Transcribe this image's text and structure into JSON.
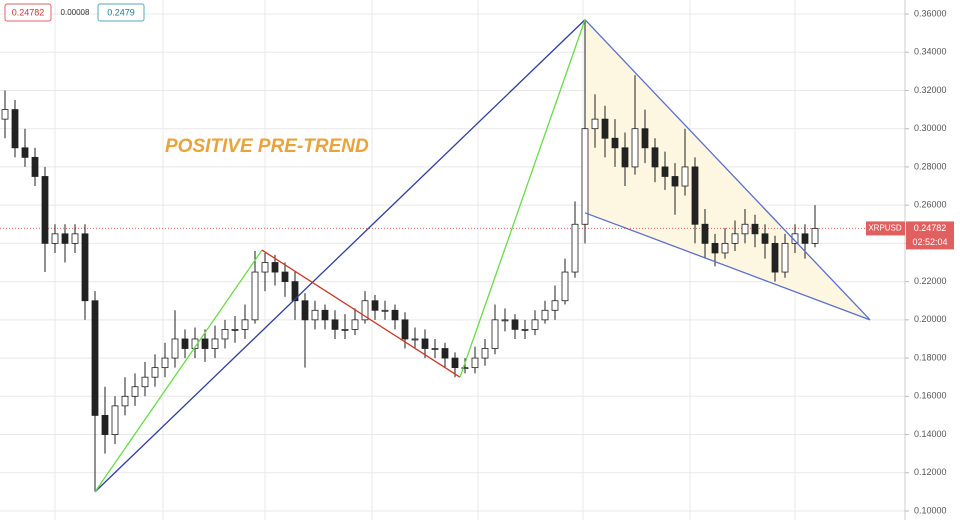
{
  "chart_data": {
    "type": "candlestick",
    "symbol": "XRPUSD",
    "last_price": 0.24782,
    "countdown": "02:52:04",
    "header": {
      "bid": 0.24782,
      "spread": 8e-05,
      "ask": 0.2479
    },
    "annotation": "POSITIVE PRE-TREND",
    "ylim": [
      0.1,
      0.36
    ],
    "yticks": [
      {
        "value": 0.1,
        "label": "0.10000"
      },
      {
        "value": 0.12,
        "label": "0.12000"
      },
      {
        "value": 0.14,
        "label": "0.14000"
      },
      {
        "value": 0.16,
        "label": "0.16000"
      },
      {
        "value": 0.18,
        "label": "0.18000"
      },
      {
        "value": 0.2,
        "label": "0.20000"
      },
      {
        "value": 0.22,
        "label": "0.22000"
      },
      {
        "value": 0.24,
        "label": "0.24000"
      },
      {
        "value": 0.26,
        "label": "0.26000"
      },
      {
        "value": 0.28,
        "label": "0.28000"
      },
      {
        "value": 0.3,
        "label": "0.30000"
      },
      {
        "value": 0.32,
        "label": "0.32000"
      },
      {
        "value": 0.34,
        "label": "0.34000"
      },
      {
        "value": 0.36,
        "label": "0.36000"
      }
    ],
    "grid": true,
    "up_color": "#ffffff",
    "down_color": "#222222",
    "ohlc": [
      [
        0.305,
        0.32,
        0.295,
        0.31
      ],
      [
        0.31,
        0.315,
        0.285,
        0.29
      ],
      [
        0.29,
        0.3,
        0.28,
        0.285
      ],
      [
        0.285,
        0.29,
        0.27,
        0.275
      ],
      [
        0.275,
        0.28,
        0.225,
        0.24
      ],
      [
        0.24,
        0.25,
        0.235,
        0.245
      ],
      [
        0.245,
        0.25,
        0.23,
        0.24
      ],
      [
        0.24,
        0.25,
        0.235,
        0.245
      ],
      [
        0.245,
        0.25,
        0.2,
        0.21
      ],
      [
        0.21,
        0.215,
        0.11,
        0.15
      ],
      [
        0.15,
        0.165,
        0.13,
        0.14
      ],
      [
        0.14,
        0.16,
        0.135,
        0.155
      ],
      [
        0.155,
        0.17,
        0.15,
        0.16
      ],
      [
        0.16,
        0.172,
        0.155,
        0.165
      ],
      [
        0.165,
        0.178,
        0.16,
        0.17
      ],
      [
        0.17,
        0.182,
        0.165,
        0.175
      ],
      [
        0.175,
        0.188,
        0.17,
        0.18
      ],
      [
        0.18,
        0.205,
        0.175,
        0.19
      ],
      [
        0.19,
        0.195,
        0.18,
        0.185
      ],
      [
        0.185,
        0.196,
        0.18,
        0.19
      ],
      [
        0.19,
        0.195,
        0.178,
        0.185
      ],
      [
        0.185,
        0.197,
        0.18,
        0.19
      ],
      [
        0.19,
        0.2,
        0.185,
        0.195
      ],
      [
        0.195,
        0.202,
        0.188,
        0.195
      ],
      [
        0.195,
        0.208,
        0.19,
        0.2
      ],
      [
        0.2,
        0.236,
        0.198,
        0.225
      ],
      [
        0.225,
        0.235,
        0.215,
        0.23
      ],
      [
        0.23,
        0.234,
        0.218,
        0.225
      ],
      [
        0.225,
        0.23,
        0.212,
        0.22
      ],
      [
        0.22,
        0.225,
        0.2,
        0.21
      ],
      [
        0.21,
        0.214,
        0.175,
        0.2
      ],
      [
        0.2,
        0.21,
        0.195,
        0.205
      ],
      [
        0.205,
        0.208,
        0.195,
        0.2
      ],
      [
        0.2,
        0.205,
        0.19,
        0.195
      ],
      [
        0.195,
        0.203,
        0.19,
        0.195
      ],
      [
        0.195,
        0.206,
        0.192,
        0.2
      ],
      [
        0.2,
        0.215,
        0.198,
        0.21
      ],
      [
        0.21,
        0.213,
        0.2,
        0.205
      ],
      [
        0.205,
        0.21,
        0.2,
        0.205
      ],
      [
        0.205,
        0.208,
        0.195,
        0.2
      ],
      [
        0.2,
        0.204,
        0.185,
        0.19
      ],
      [
        0.19,
        0.196,
        0.185,
        0.19
      ],
      [
        0.19,
        0.195,
        0.18,
        0.185
      ],
      [
        0.185,
        0.19,
        0.18,
        0.185
      ],
      [
        0.185,
        0.188,
        0.175,
        0.18
      ],
      [
        0.18,
        0.183,
        0.17,
        0.175
      ],
      [
        0.175,
        0.18,
        0.172,
        0.175
      ],
      [
        0.175,
        0.186,
        0.172,
        0.18
      ],
      [
        0.18,
        0.19,
        0.176,
        0.185
      ],
      [
        0.185,
        0.208,
        0.182,
        0.2
      ],
      [
        0.2,
        0.206,
        0.194,
        0.2
      ],
      [
        0.2,
        0.203,
        0.19,
        0.195
      ],
      [
        0.195,
        0.2,
        0.19,
        0.195
      ],
      [
        0.195,
        0.205,
        0.192,
        0.2
      ],
      [
        0.2,
        0.21,
        0.198,
        0.205
      ],
      [
        0.205,
        0.218,
        0.2,
        0.21
      ],
      [
        0.21,
        0.232,
        0.208,
        0.225
      ],
      [
        0.225,
        0.262,
        0.222,
        0.25
      ],
      [
        0.25,
        0.357,
        0.24,
        0.3
      ],
      [
        0.3,
        0.318,
        0.29,
        0.305
      ],
      [
        0.305,
        0.312,
        0.285,
        0.295
      ],
      [
        0.295,
        0.305,
        0.28,
        0.29
      ],
      [
        0.29,
        0.298,
        0.27,
        0.28
      ],
      [
        0.28,
        0.328,
        0.276,
        0.3
      ],
      [
        0.3,
        0.31,
        0.282,
        0.29
      ],
      [
        0.29,
        0.295,
        0.272,
        0.28
      ],
      [
        0.28,
        0.288,
        0.268,
        0.275
      ],
      [
        0.275,
        0.282,
        0.255,
        0.27
      ],
      [
        0.27,
        0.3,
        0.265,
        0.28
      ],
      [
        0.28,
        0.285,
        0.24,
        0.25
      ],
      [
        0.25,
        0.258,
        0.232,
        0.24
      ],
      [
        0.24,
        0.245,
        0.228,
        0.235
      ],
      [
        0.235,
        0.248,
        0.232,
        0.24
      ],
      [
        0.24,
        0.252,
        0.236,
        0.245
      ],
      [
        0.245,
        0.258,
        0.24,
        0.25
      ],
      [
        0.25,
        0.255,
        0.238,
        0.245
      ],
      [
        0.245,
        0.25,
        0.232,
        0.24
      ],
      [
        0.24,
        0.244,
        0.22,
        0.225
      ],
      [
        0.225,
        0.245,
        0.222,
        0.24
      ],
      [
        0.24,
        0.25,
        0.235,
        0.245
      ],
      [
        0.245,
        0.25,
        0.232,
        0.24
      ],
      [
        0.24,
        0.26,
        0.238,
        0.24782
      ]
    ],
    "wedge": {
      "color": "#fdf6e0",
      "points": [
        [
          58,
          0.357
        ],
        [
          86.5,
          0.2
        ],
        [
          58,
          0.256
        ]
      ]
    },
    "drawings": [
      {
        "color": "#2f3fa0",
        "points": [
          [
            9,
            0.11
          ],
          [
            58,
            0.357
          ]
        ]
      },
      {
        "color": "#5a6fd0",
        "points": [
          [
            58,
            0.357
          ],
          [
            86.5,
            0.2
          ]
        ]
      },
      {
        "color": "#5a6fd0",
        "points": [
          [
            58,
            0.256
          ],
          [
            86.5,
            0.2
          ]
        ]
      },
      {
        "color": "#66dd44",
        "points": [
          [
            9,
            0.11
          ],
          [
            25.7,
            0.2365
          ]
        ]
      },
      {
        "color": "#cc3322",
        "points": [
          [
            25.7,
            0.2365
          ],
          [
            45.5,
            0.17
          ]
        ]
      },
      {
        "color": "#66dd44",
        "points": [
          [
            45.5,
            0.17
          ],
          [
            58,
            0.357
          ]
        ]
      }
    ]
  }
}
